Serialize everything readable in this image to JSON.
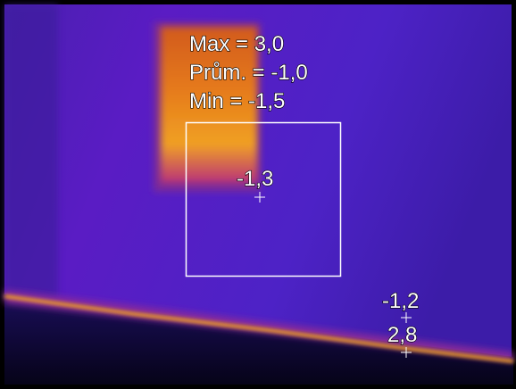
{
  "measurement_box": {
    "stats": [
      "Max = 3,0",
      "Prům. = -1,0",
      "Min = -1,5"
    ]
  },
  "spots": [
    {
      "label": "-1,3"
    },
    {
      "label": "-1,2"
    },
    {
      "label": "2,8"
    }
  ]
}
